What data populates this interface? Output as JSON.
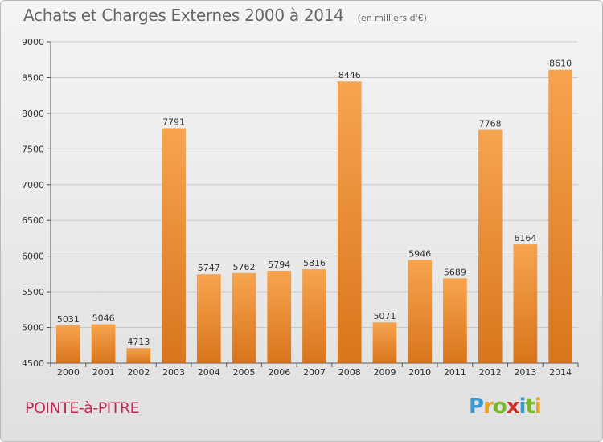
{
  "title": "Achats et Charges Externes 2000 à 2014",
  "subtitle": "(en milliers d'€)",
  "location": "POINTE-à-PITRE",
  "logo": {
    "text": "Proxiti",
    "letters": [
      "P",
      "r",
      "o",
      "x",
      "i",
      "t",
      "i"
    ],
    "colors": [
      "#3d9ad1",
      "#e8a21f",
      "#76b82a",
      "#d2322d",
      "#3d9ad1",
      "#76b82a",
      "#e8a21f"
    ]
  },
  "colors": {
    "bar_top": "#f7a44f",
    "bar_bottom": "#d9751c",
    "grid": "#c8c8c8",
    "axis": "#555555",
    "location": "#c0264f"
  },
  "chart_data": {
    "type": "bar",
    "categories": [
      "2000",
      "2001",
      "2002",
      "2003",
      "2004",
      "2005",
      "2006",
      "2007",
      "2008",
      "2009",
      "2010",
      "2011",
      "2012",
      "2013",
      "2014"
    ],
    "values": [
      5031,
      5046,
      4713,
      7791,
      5747,
      5762,
      5794,
      5816,
      8446,
      5071,
      5946,
      5689,
      7768,
      6164,
      8610
    ],
    "ylim": [
      4500,
      9000
    ],
    "yticks": [
      4500,
      5000,
      5500,
      6000,
      6500,
      7000,
      7500,
      8000,
      8500,
      9000
    ],
    "grid": true,
    "data_labels": true
  }
}
